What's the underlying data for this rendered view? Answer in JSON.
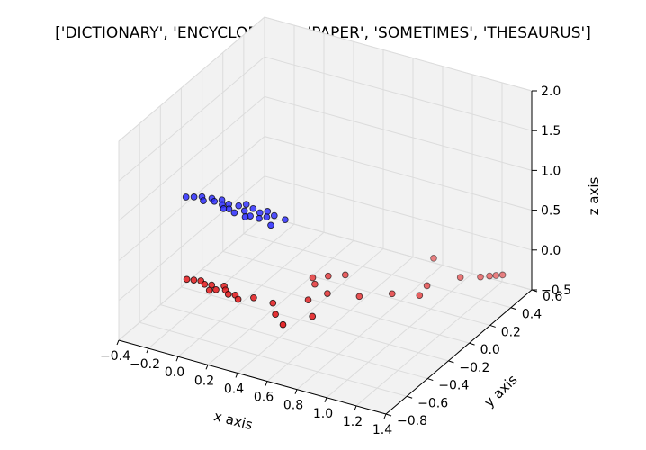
{
  "chart_data": {
    "type": "scatter",
    "projection": "3d",
    "title": "['DICTIONARY', 'ENCYCLOPEDIA', 'PAPER', 'SOMETIMES', 'THESAURUS']",
    "xlabel": "x axis",
    "ylabel": "y axis",
    "zlabel": "z axis",
    "xlim": [
      -0.4,
      1.4
    ],
    "ylim": [
      -0.8,
      0.6
    ],
    "zlim": [
      -0.5,
      2.0
    ],
    "xticks": [
      "−0.4",
      "−0.2",
      "0.0",
      "0.2",
      "0.4",
      "0.6",
      "0.8",
      "1.0",
      "1.2",
      "1.4"
    ],
    "yticks": [
      "−0.8",
      "−0.6",
      "−0.4",
      "−0.2",
      "0.0",
      "0.2",
      "0.4",
      "0.6"
    ],
    "zticks": [
      "−0.5",
      "0.0",
      "0.5",
      "1.0",
      "1.5",
      "2.0"
    ],
    "grid": true,
    "colors": {
      "series_red": "#e31a1c",
      "series_blue": "#2b2bff"
    },
    "series": [
      {
        "color": "#e31a1c",
        "points": [
          [
            -0.18,
            -0.46,
            0
          ],
          [
            -0.14,
            -0.45,
            0
          ],
          [
            -0.1,
            -0.44,
            0
          ],
          [
            -0.06,
            -0.46,
            0
          ],
          [
            -0.02,
            -0.45,
            0
          ],
          [
            0.0,
            -0.5,
            0
          ],
          [
            0.03,
            -0.48,
            0
          ],
          [
            0.05,
            -0.43,
            0
          ],
          [
            0.08,
            -0.46,
            0
          ],
          [
            0.12,
            -0.49,
            0
          ],
          [
            0.16,
            -0.48,
            0
          ],
          [
            0.2,
            -0.51,
            0
          ],
          [
            0.27,
            -0.46,
            0
          ],
          [
            0.4,
            -0.46,
            0
          ],
          [
            0.48,
            -0.55,
            0
          ],
          [
            0.58,
            -0.62,
            0
          ],
          [
            0.68,
            -0.48,
            0
          ],
          [
            0.56,
            -0.35,
            0
          ],
          [
            0.62,
            -0.25,
            0
          ],
          [
            0.5,
            -0.2,
            0
          ],
          [
            0.45,
            -0.15,
            0
          ],
          [
            0.52,
            -0.1,
            0
          ],
          [
            0.6,
            -0.05,
            0
          ],
          [
            0.8,
            -0.2,
            0
          ],
          [
            0.95,
            -0.1,
            0
          ],
          [
            0.95,
            0.3,
            0
          ],
          [
            1.08,
            0.05,
            0
          ],
          [
            1.1,
            -0.05,
            0
          ],
          [
            1.2,
            0.2,
            0
          ],
          [
            1.3,
            0.25,
            0
          ],
          [
            1.34,
            0.28,
            0
          ],
          [
            1.37,
            0.3,
            0
          ],
          [
            1.4,
            0.32,
            0
          ]
        ]
      },
      {
        "color": "#2b2bff",
        "points": [
          [
            -0.2,
            -0.44,
            1
          ],
          [
            -0.16,
            -0.42,
            1
          ],
          [
            -0.12,
            -0.4,
            1
          ],
          [
            -0.09,
            -0.43,
            1
          ],
          [
            -0.06,
            -0.39,
            1
          ],
          [
            -0.03,
            -0.41,
            1
          ],
          [
            0.0,
            -0.38,
            1
          ],
          [
            0.03,
            -0.42,
            1
          ],
          [
            0.06,
            -0.4,
            1
          ],
          [
            0.09,
            -0.44,
            1
          ],
          [
            0.12,
            -0.39,
            1
          ],
          [
            0.15,
            -0.36,
            1
          ],
          [
            0.18,
            -0.42,
            1
          ],
          [
            0.21,
            -0.38,
            1
          ],
          [
            0.24,
            -0.45,
            1
          ],
          [
            0.27,
            -0.4,
            1
          ],
          [
            0.3,
            -0.37,
            1
          ],
          [
            0.33,
            -0.42,
            1
          ],
          [
            0.36,
            -0.39,
            1
          ],
          [
            0.4,
            -0.48,
            1
          ],
          [
            0.44,
            -0.4,
            1
          ],
          [
            0.3,
            -0.45,
            1
          ],
          [
            0.22,
            -0.47,
            1
          ],
          [
            0.14,
            -0.46,
            1
          ],
          [
            0.06,
            -0.45,
            1
          ]
        ]
      }
    ]
  }
}
